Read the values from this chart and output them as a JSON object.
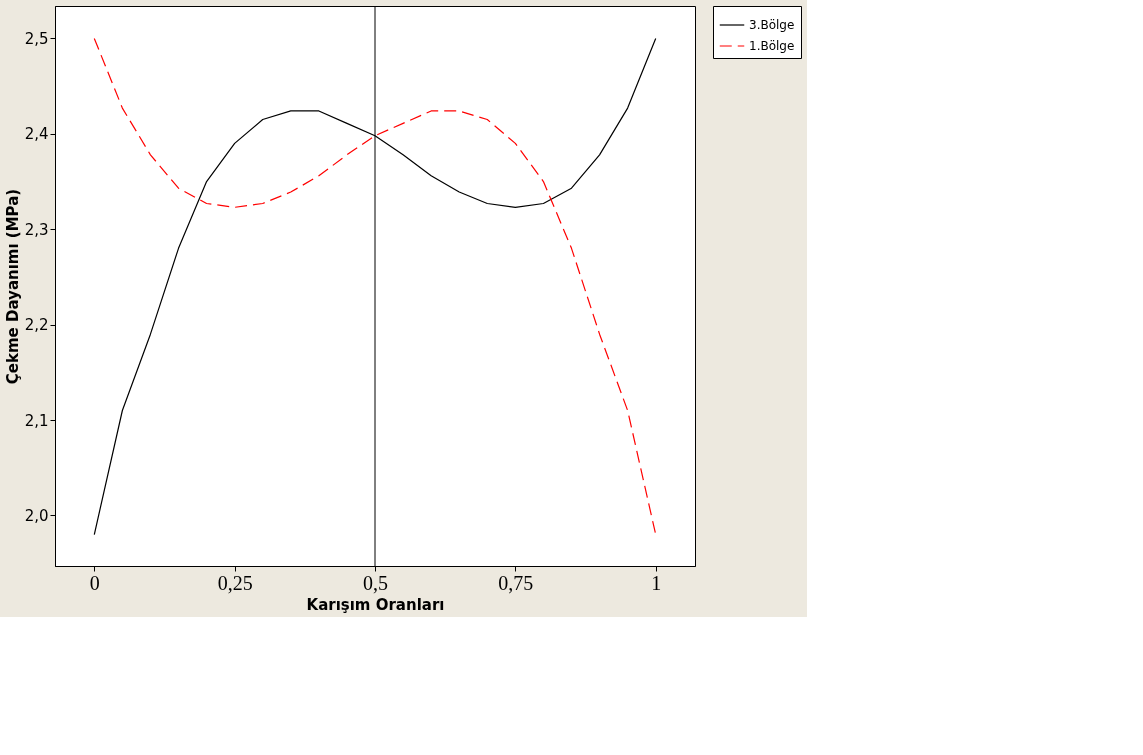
{
  "chart_data": {
    "type": "line",
    "xlabel": "Karışım Oranları",
    "ylabel": "Çekme Dayanımı (MPa)",
    "x": [
      0,
      0.05,
      0.1,
      0.15,
      0.2,
      0.25,
      0.3,
      0.35,
      0.4,
      0.45,
      0.5,
      0.55,
      0.6,
      0.65,
      0.7,
      0.75,
      0.8,
      0.85,
      0.9,
      0.95,
      1
    ],
    "series": [
      {
        "name": "3.Bölge",
        "color": "#000000",
        "line_style": "solid",
        "values": [
          1.98,
          2.11,
          2.19,
          2.28,
          2.35,
          2.39,
          2.415,
          2.424,
          2.424,
          2.411,
          2.398,
          2.378,
          2.356,
          2.339,
          2.327,
          2.323,
          2.327,
          2.343,
          2.378,
          2.427,
          2.5
        ]
      },
      {
        "name": "1.Bölge",
        "color": "#ff0000",
        "line_style": "dashed",
        "values": [
          2.5,
          2.427,
          2.378,
          2.343,
          2.327,
          2.323,
          2.327,
          2.339,
          2.356,
          2.378,
          2.398,
          2.411,
          2.424,
          2.424,
          2.415,
          2.39,
          2.35,
          2.28,
          2.19,
          2.11,
          1.98
        ]
      }
    ],
    "xlim": [
      -0.07,
      1.07
    ],
    "ylim": [
      1.947,
      2.534
    ],
    "xticks": [
      0,
      {
        "value": 0.25,
        "label": "0,25"
      },
      {
        "value": 0.5,
        "label": "0,5"
      },
      {
        "value": 0.75,
        "label": "0,75"
      },
      1
    ],
    "yticks": [
      {
        "value": 2.0,
        "label": "2,0"
      },
      {
        "value": 2.1,
        "label": "2,1"
      },
      {
        "value": 2.2,
        "label": "2,2"
      },
      {
        "value": 2.3,
        "label": "2,3"
      },
      {
        "value": 2.4,
        "label": "2,4"
      },
      {
        "value": 2.5,
        "label": "2,5"
      }
    ],
    "ref_lines": [
      {
        "axis": "x",
        "value": 0.5,
        "color": "#000000"
      }
    ],
    "grid": false,
    "legend": "top right"
  }
}
